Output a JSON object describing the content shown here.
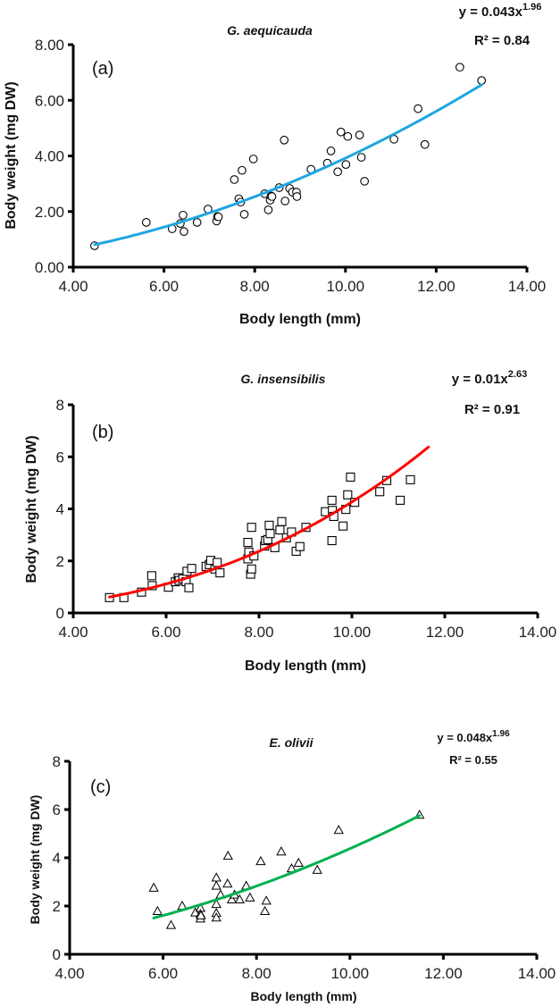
{
  "chart_data": [
    {
      "type": "scatter",
      "panel_label": "(a)",
      "title": "G. aequicauda",
      "equation": "y = 0.043x",
      "equation_exponent": "1.96",
      "r2_label": "R² = 0.84",
      "xlabel": "Body length (mm)",
      "ylabel": "Body weight (mg DW)",
      "xlim": [
        4,
        14
      ],
      "ylim": [
        0,
        8
      ],
      "xticks": [
        "4.00",
        "6.00",
        "8.00",
        "10.00",
        "12.00",
        "14.00"
      ],
      "xtick_values": [
        4,
        6,
        8,
        10,
        12,
        14
      ],
      "yticks": [
        "0.00",
        "2.00",
        "4.00",
        "6.00",
        "8.00"
      ],
      "ytick_values": [
        0,
        2,
        4,
        6,
        8
      ],
      "marker": "circle",
      "trend": {
        "a": 0.043,
        "b": 1.96,
        "x_range": [
          4.47,
          13.0
        ],
        "color": "#1EA6E2"
      },
      "points": [
        [
          4.47,
          0.77
        ],
        [
          5.61,
          1.61
        ],
        [
          6.18,
          1.38
        ],
        [
          6.36,
          1.57
        ],
        [
          6.42,
          1.87
        ],
        [
          6.44,
          1.28
        ],
        [
          6.73,
          1.61
        ],
        [
          6.97,
          2.09
        ],
        [
          7.16,
          1.66
        ],
        [
          7.18,
          1.82
        ],
        [
          7.2,
          1.81
        ],
        [
          7.55,
          3.15
        ],
        [
          7.65,
          2.46
        ],
        [
          7.69,
          2.34
        ],
        [
          7.72,
          3.48
        ],
        [
          7.77,
          1.9
        ],
        [
          7.97,
          3.89
        ],
        [
          8.22,
          2.64
        ],
        [
          8.3,
          2.06
        ],
        [
          8.34,
          2.41
        ],
        [
          8.36,
          2.56
        ],
        [
          8.38,
          2.54
        ],
        [
          8.54,
          2.86
        ],
        [
          8.65,
          4.57
        ],
        [
          8.67,
          2.38
        ],
        [
          8.77,
          2.83
        ],
        [
          8.83,
          2.7
        ],
        [
          8.92,
          2.7
        ],
        [
          8.93,
          2.54
        ],
        [
          9.24,
          3.52
        ],
        [
          9.6,
          3.74
        ],
        [
          9.68,
          4.18
        ],
        [
          9.83,
          3.43
        ],
        [
          9.9,
          4.86
        ],
        [
          10.01,
          3.69
        ],
        [
          10.05,
          4.7
        ],
        [
          10.31,
          4.75
        ],
        [
          10.35,
          3.95
        ],
        [
          10.42,
          3.09
        ],
        [
          11.07,
          4.6
        ],
        [
          11.6,
          5.7
        ],
        [
          11.75,
          4.41
        ],
        [
          12.52,
          7.19
        ],
        [
          13.0,
          6.71
        ]
      ],
      "grid": false,
      "legend": "none"
    },
    {
      "type": "scatter",
      "panel_label": "(b)",
      "title": "G. insensibilis",
      "equation": "y = 0.01x",
      "equation_exponent": "2.63",
      "r2_label": "R² = 0.91",
      "xlabel": "Body length (mm)",
      "ylabel": "Body weight (mg DW)",
      "xlim": [
        4,
        14
      ],
      "ylim": [
        0,
        8
      ],
      "xticks": [
        "4.00",
        "6.00",
        "8.00",
        "10.00",
        "12.00",
        "14.00"
      ],
      "xtick_values": [
        4,
        6,
        8,
        10,
        12,
        14
      ],
      "yticks": [
        "0",
        "2",
        "4",
        "6",
        "8"
      ],
      "ytick_values": [
        0,
        2,
        4,
        6,
        8
      ],
      "marker": "square",
      "trend": {
        "a": 0.01,
        "b": 2.63,
        "x_range": [
          4.78,
          11.65
        ],
        "color": "#FF0000"
      },
      "points": [
        [
          4.78,
          0.59
        ],
        [
          5.09,
          0.59
        ],
        [
          5.47,
          0.8
        ],
        [
          5.69,
          1.43
        ],
        [
          5.7,
          1.05
        ],
        [
          6.05,
          0.99
        ],
        [
          6.2,
          1.2
        ],
        [
          6.26,
          1.35
        ],
        [
          6.28,
          1.25
        ],
        [
          6.36,
          1.31
        ],
        [
          6.45,
          1.6
        ],
        [
          6.43,
          1.2
        ],
        [
          6.49,
          0.97
        ],
        [
          6.55,
          1.71
        ],
        [
          6.86,
          1.79
        ],
        [
          6.93,
          1.86
        ],
        [
          6.96,
          2.02
        ],
        [
          7.05,
          1.69
        ],
        [
          7.1,
          1.94
        ],
        [
          7.16,
          1.54
        ],
        [
          7.76,
          2.71
        ],
        [
          7.76,
          2.08
        ],
        [
          7.78,
          2.34
        ],
        [
          7.82,
          1.49
        ],
        [
          7.84,
          1.69
        ],
        [
          7.84,
          3.29
        ],
        [
          7.89,
          2.19
        ],
        [
          8.12,
          2.57
        ],
        [
          8.14,
          2.78
        ],
        [
          8.19,
          2.82
        ],
        [
          8.22,
          3.37
        ],
        [
          8.24,
          3.05
        ],
        [
          8.34,
          2.51
        ],
        [
          8.45,
          3.19
        ],
        [
          8.49,
          3.51
        ],
        [
          8.59,
          2.89
        ],
        [
          8.7,
          3.11
        ],
        [
          8.8,
          2.37
        ],
        [
          8.88,
          2.55
        ],
        [
          9.01,
          3.29
        ],
        [
          9.43,
          3.89
        ],
        [
          9.57,
          4.33
        ],
        [
          9.57,
          2.78
        ],
        [
          9.58,
          3.94
        ],
        [
          9.61,
          3.71
        ],
        [
          9.81,
          3.34
        ],
        [
          9.87,
          3.98
        ],
        [
          9.91,
          4.54
        ],
        [
          9.97,
          5.22
        ],
        [
          10.06,
          4.25
        ],
        [
          10.6,
          4.66
        ],
        [
          10.75,
          5.09
        ],
        [
          11.04,
          4.33
        ],
        [
          11.26,
          5.12
        ]
      ],
      "grid": false,
      "legend": "none"
    },
    {
      "type": "scatter",
      "panel_label": "(c)",
      "title": "E. olivii",
      "equation": "y = 0.048x",
      "equation_exponent": "1.96",
      "r2_label": "R² = 0.55",
      "xlabel": "Body length (mm)",
      "ylabel": "Body weight (mg DW)",
      "xlim": [
        4,
        14
      ],
      "ylim": [
        0,
        8
      ],
      "xticks": [
        "4.00",
        "6.00",
        "8.00",
        "10.00",
        "12.00",
        "14.00"
      ],
      "xtick_values": [
        4,
        6,
        8,
        10,
        12,
        14
      ],
      "yticks": [
        "0",
        "2",
        "4",
        "6",
        "8"
      ],
      "ytick_values": [
        0,
        2,
        4,
        6,
        8
      ],
      "marker": "triangle",
      "trend": {
        "a": 0.048,
        "b": 1.96,
        "x_range": [
          5.8,
          11.49
        ],
        "color": "#00B050"
      },
      "points": [
        [
          5.8,
          2.76
        ],
        [
          5.88,
          1.79
        ],
        [
          6.17,
          1.21
        ],
        [
          6.41,
          2.01
        ],
        [
          6.69,
          1.73
        ],
        [
          6.8,
          1.92
        ],
        [
          6.8,
          1.67
        ],
        [
          6.8,
          1.48
        ],
        [
          6.81,
          1.61
        ],
        [
          7.14,
          3.18
        ],
        [
          7.14,
          2.84
        ],
        [
          7.14,
          2.08
        ],
        [
          7.14,
          1.71
        ],
        [
          7.14,
          1.52
        ],
        [
          7.23,
          2.47
        ],
        [
          7.38,
          2.93
        ],
        [
          7.39,
          4.08
        ],
        [
          7.47,
          2.27
        ],
        [
          7.53,
          2.47
        ],
        [
          7.64,
          2.27
        ],
        [
          7.78,
          2.84
        ],
        [
          7.86,
          2.35
        ],
        [
          8.09,
          3.86
        ],
        [
          8.18,
          1.79
        ],
        [
          8.21,
          2.22
        ],
        [
          8.53,
          4.26
        ],
        [
          8.75,
          3.56
        ],
        [
          8.9,
          3.79
        ],
        [
          9.3,
          3.5
        ],
        [
          9.76,
          5.15
        ],
        [
          11.49,
          5.78
        ]
      ],
      "grid": false,
      "legend": "none"
    }
  ]
}
